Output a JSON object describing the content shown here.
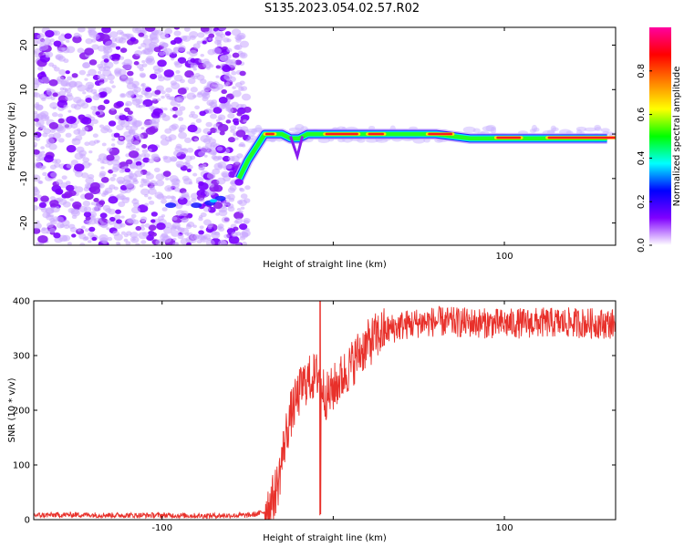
{
  "title": "S135.2023.054.02.57.R02",
  "chart_data": [
    {
      "type": "heatmap",
      "xlabel": "Height of straight line (km)",
      "ylabel": "Frequency (Hz)",
      "xlim": [
        -175,
        165
      ],
      "ylim": [
        -25,
        24
      ],
      "x_ticks": [
        -100,
        0,
        100
      ],
      "x_tick_labels": [
        "-100",
        "",
        "100"
      ],
      "y_ticks": [
        -20,
        -10,
        0,
        10,
        20
      ],
      "y_tick_labels": [
        "-20",
        "-10",
        "0",
        "10",
        "20"
      ],
      "ridge": {
        "x": [
          -55,
          -50,
          -45,
          -40,
          -35,
          -30,
          -25,
          -20,
          -15,
          -10,
          0,
          20,
          40,
          60,
          80,
          100,
          120,
          140,
          160
        ],
        "y": [
          -10,
          -6,
          -3,
          0,
          0,
          0,
          -1,
          -1,
          0,
          0,
          0,
          0,
          0,
          0,
          -1,
          -1,
          -1,
          -1,
          -1
        ]
      },
      "noise_region_x": [
        -175,
        -50
      ],
      "colorbar": {
        "label": "Normalized spectral amplitude",
        "range": [
          0,
          1
        ],
        "ticks": [
          0.0,
          0.2,
          0.4,
          0.6,
          0.8
        ],
        "tick_labels": [
          "0.0",
          "0.2",
          "0.4",
          "0.6",
          "0.8"
        ],
        "colors": [
          "#ffffff",
          "#8000ff",
          "#0000ff",
          "#00ffff",
          "#00ff00",
          "#ffff00",
          "#ff8000",
          "#ff0000",
          "#ff00a0"
        ]
      },
      "grid": false
    },
    {
      "type": "line",
      "xlabel": "Height of straight line (km)",
      "ylabel": "SNR (10 * v/v)",
      "xlim": [
        -175,
        165
      ],
      "ylim": [
        0,
        400
      ],
      "x_ticks": [
        -100,
        0,
        100
      ],
      "x_tick_labels": [
        "-100",
        "",
        "100"
      ],
      "y_ticks": [
        0,
        100,
        200,
        300,
        400
      ],
      "y_tick_labels": [
        "0",
        "100",
        "200",
        "300",
        "400"
      ],
      "color": "#e8302a",
      "series": [
        {
          "x": [
            -175,
            -150,
            -125,
            -100,
            -75,
            -50,
            -45,
            -40,
            -35,
            -32,
            -30,
            -28,
            -25,
            -22,
            -20,
            -18,
            -15,
            -12,
            -10,
            -8,
            -6,
            -4,
            -2,
            0,
            5,
            10,
            15,
            20,
            25,
            30,
            40,
            50,
            60,
            80,
            100,
            120,
            140,
            165
          ],
          "values": [
            8,
            9,
            8,
            8,
            7,
            8,
            10,
            15,
            40,
            70,
            110,
            150,
            190,
            215,
            230,
            245,
            255,
            260,
            262,
            270,
            240,
            225,
            230,
            240,
            260,
            280,
            305,
            320,
            335,
            345,
            355,
            360,
            362,
            360,
            358,
            360,
            360,
            358
          ]
        }
      ],
      "grid": false
    }
  ]
}
